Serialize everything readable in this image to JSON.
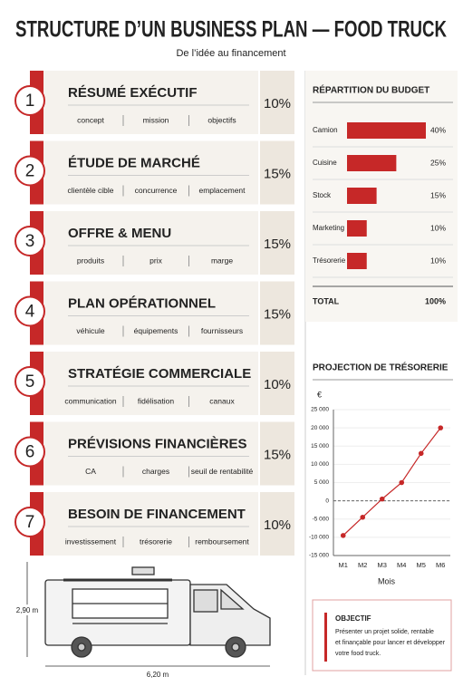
{
  "header": {
    "title": "STRUCTURE D’UN BUSINESS PLAN — FOOD TRUCK",
    "subtitle": "De l’idée au financement"
  },
  "sections": [
    {
      "number": 1,
      "title": "RÉSUMÉ EXÉCUTIF",
      "tags": [
        "concept",
        "mission",
        "objectifs"
      ],
      "share": "10%"
    },
    {
      "number": 2,
      "title": "ÉTUDE DE MARCHÉ",
      "tags": [
        "clientèle cible",
        "concurrence",
        "emplacement"
      ],
      "share": "15%"
    },
    {
      "number": 3,
      "title": "OFFRE & MENU",
      "tags": [
        "produits",
        "prix",
        "marge"
      ],
      "share": "15%"
    },
    {
      "number": 4,
      "title": "PLAN OPÉRATIONNEL",
      "tags": [
        "véhicule",
        "équipements",
        "fournisseurs"
      ],
      "share": "15%"
    },
    {
      "number": 5,
      "title": "STRATÉGIE COMMERCIALE",
      "tags": [
        "communication",
        "fidélisation",
        "canaux"
      ],
      "share": "10%"
    },
    {
      "number": 6,
      "title": "PRÉVISIONS FINANCIÈRES",
      "tags": [
        "CA",
        "charges",
        "seuil de rentabilité"
      ],
      "share": "15%"
    },
    {
      "number": 7,
      "title": "BESOIN DE FINANCEMENT",
      "tags": [
        "investissement",
        "trésorerie",
        "remboursement"
      ],
      "share": "10%"
    }
  ],
  "chart_data": [
    {
      "type": "bar",
      "orientation": "horizontal",
      "title": "RÉPARTITION DU BUDGET",
      "categories": [
        "Camion",
        "Cuisine",
        "Stock",
        "Marketing",
        "Trésorerie"
      ],
      "values": [
        40,
        25,
        15,
        10,
        10
      ],
      "value_labels": [
        "40%",
        "25%",
        "15%",
        "10%",
        "10%"
      ],
      "color": "#c62828",
      "xlim": [
        0,
        40
      ],
      "total_label": "TOTAL",
      "total_value": "100%"
    },
    {
      "type": "line",
      "title": "PROJECTION DE TRÉSORERIE",
      "ylabel": "€",
      "xlabel": "Mois",
      "categories": [
        "M1",
        "M2",
        "M3",
        "M4",
        "M5",
        "M6"
      ],
      "values": [
        -9500,
        -4500,
        500,
        5000,
        13000,
        20000
      ],
      "color": "#c62828",
      "ylim": [
        -15000,
        25000
      ],
      "yticks": [
        {
          "value": -15000,
          "label": "-15 000"
        },
        {
          "value": -10000,
          "label": "-10 000"
        },
        {
          "value": -5000,
          "label": "-5 000"
        },
        0,
        {
          "value": 5000,
          "label": "5 000"
        },
        {
          "value": 10000,
          "label": "10 000"
        },
        {
          "value": 15000,
          "label": "15 000"
        },
        {
          "value": 20000,
          "label": "20 000"
        },
        {
          "value": 25000,
          "label": "25 000"
        }
      ],
      "zero_line": true
    }
  ],
  "truck": {
    "height": "2,90 m",
    "length": "6,20 m"
  },
  "objective": {
    "title": "OBJECTIF",
    "lines": [
      "Présenter un projet solide, rentable",
      "et finançable pour lancer et développer",
      "votre food truck."
    ]
  }
}
